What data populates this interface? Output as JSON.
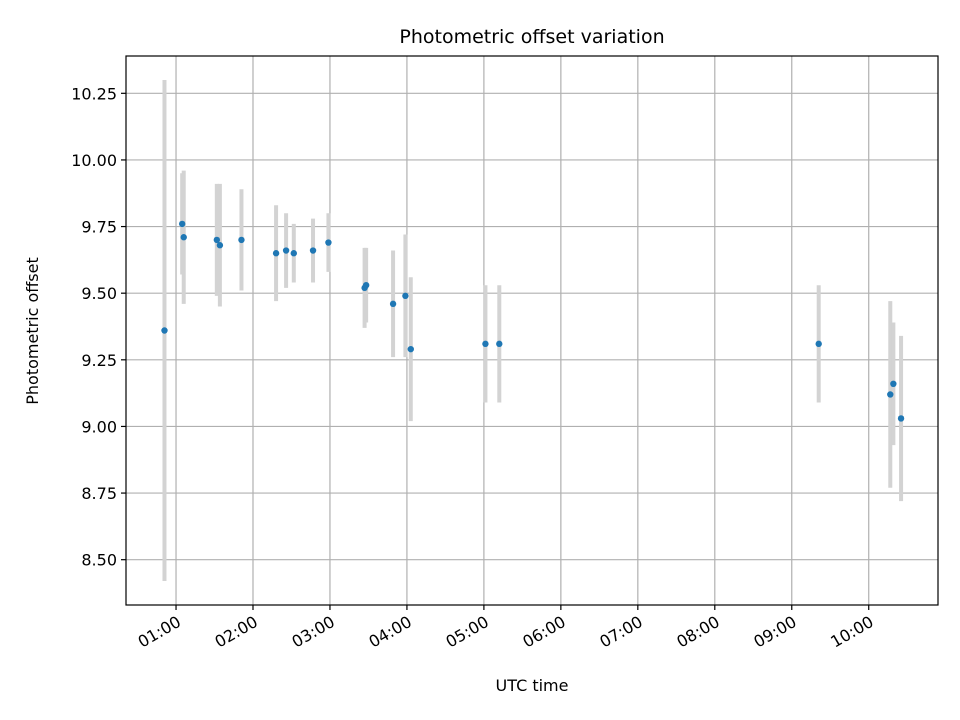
{
  "chart_data": {
    "type": "scatter",
    "title": "Photometric offset variation",
    "xlabel": "UTC time",
    "ylabel": "Photometric offset",
    "x_tick_labels": [
      "01:00",
      "02:00",
      "03:00",
      "04:00",
      "05:00",
      "06:00",
      "07:00",
      "08:00",
      "09:00",
      "10:00"
    ],
    "x_tick_hours": [
      1,
      2,
      3,
      4,
      5,
      6,
      7,
      8,
      9,
      10
    ],
    "xlim_hours": [
      0.35,
      10.9
    ],
    "y_ticks": [
      8.5,
      8.75,
      9.0,
      9.25,
      9.5,
      9.75,
      10.0,
      10.25
    ],
    "y_tick_labels": [
      "8.50",
      "8.75",
      "9.00",
      "9.25",
      "9.50",
      "9.75",
      "10.00",
      "10.25"
    ],
    "ylim": [
      8.33,
      10.39
    ],
    "grid": true,
    "point_color": "#1f77b4",
    "errorbar_color": "#d3d3d3",
    "points": [
      {
        "x_hours": 0.85,
        "y": 9.36,
        "err": 0.94
      },
      {
        "x_hours": 1.08,
        "y": 9.76,
        "err": 0.19
      },
      {
        "x_hours": 1.1,
        "y": 9.71,
        "err": 0.25
      },
      {
        "x_hours": 1.53,
        "y": 9.7,
        "err": 0.21
      },
      {
        "x_hours": 1.57,
        "y": 9.68,
        "err": 0.23
      },
      {
        "x_hours": 1.85,
        "y": 9.7,
        "err": 0.19
      },
      {
        "x_hours": 2.3,
        "y": 9.65,
        "err": 0.18
      },
      {
        "x_hours": 2.43,
        "y": 9.66,
        "err": 0.14
      },
      {
        "x_hours": 2.53,
        "y": 9.65,
        "err": 0.11
      },
      {
        "x_hours": 2.78,
        "y": 9.66,
        "err": 0.12
      },
      {
        "x_hours": 2.98,
        "y": 9.69,
        "err": 0.11
      },
      {
        "x_hours": 3.45,
        "y": 9.52,
        "err": 0.15
      },
      {
        "x_hours": 3.47,
        "y": 9.53,
        "err": 0.14
      },
      {
        "x_hours": 3.82,
        "y": 9.46,
        "err": 0.2
      },
      {
        "x_hours": 3.98,
        "y": 9.49,
        "err": 0.23
      },
      {
        "x_hours": 4.05,
        "y": 9.29,
        "err": 0.27
      },
      {
        "x_hours": 5.02,
        "y": 9.31,
        "err": 0.22
      },
      {
        "x_hours": 5.2,
        "y": 9.31,
        "err": 0.22
      },
      {
        "x_hours": 9.35,
        "y": 9.31,
        "err": 0.22
      },
      {
        "x_hours": 10.28,
        "y": 9.12,
        "err": 0.35
      },
      {
        "x_hours": 10.32,
        "y": 9.16,
        "err": 0.23
      },
      {
        "x_hours": 10.42,
        "y": 9.03,
        "err": 0.31
      }
    ]
  }
}
